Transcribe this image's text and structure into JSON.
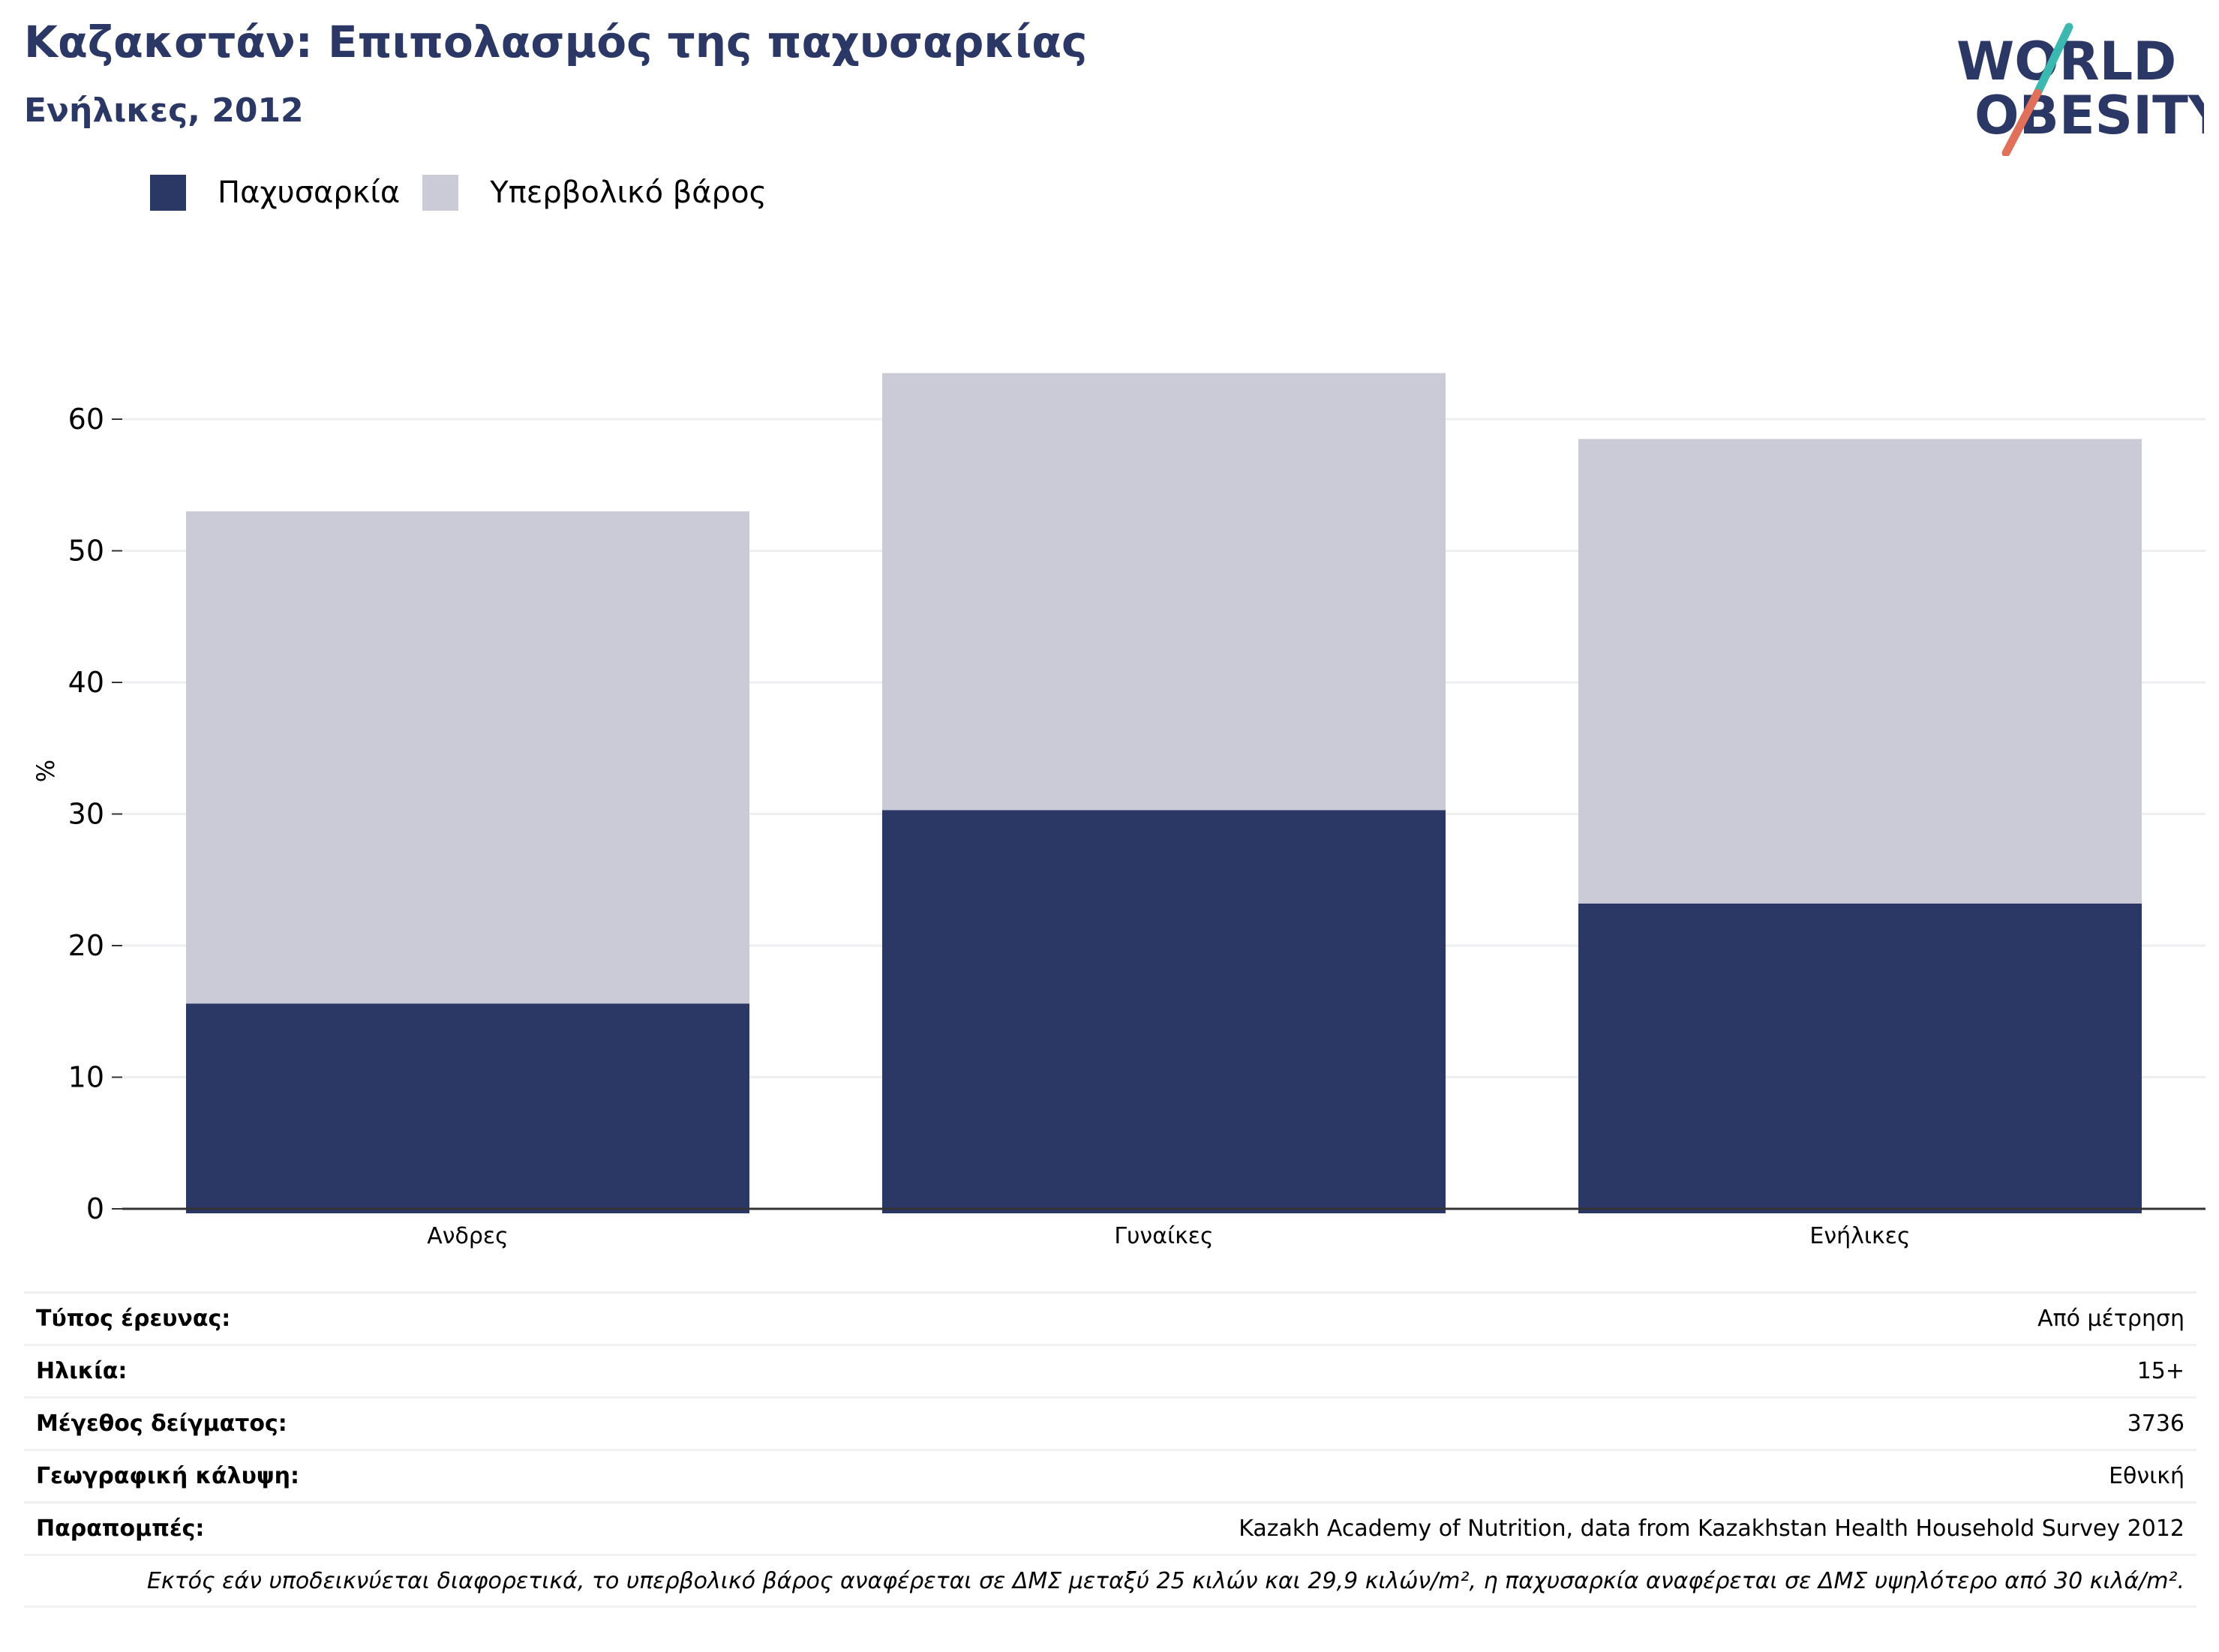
{
  "header": {
    "title": "Καζακστάν: Επιπολασμός της παχυσαρκίας",
    "subtitle": "Ενήλικες, 2012"
  },
  "logo": {
    "line1": "WORLD",
    "line2": "OBESITY",
    "colors": {
      "text": "#2b3765",
      "teal": "#3bb8b0",
      "coral": "#e0705a"
    }
  },
  "chart_data": {
    "type": "bar",
    "stacked": true,
    "categories": [
      "Ανδρες",
      "Γυναίκες",
      "Ενήλικες"
    ],
    "series": [
      {
        "name": "Παχυσαρκία",
        "values": [
          15.6,
          30.3,
          23.2
        ],
        "color": "#2b3765"
      },
      {
        "name": "Υπερβολικό βάρος",
        "values": [
          37.4,
          33.2,
          35.3
        ],
        "color": "#cacbd6"
      }
    ],
    "yticks": [
      "0",
      "10",
      "20",
      "30",
      "40",
      "50",
      "60"
    ],
    "ylim": [
      0,
      65
    ],
    "ylabel": "%",
    "grid": true,
    "legend": "top-left"
  },
  "info": {
    "rows": [
      {
        "key": "Τύπος έρευνας:",
        "value": "Από μέτρηση"
      },
      {
        "key": "Ηλικία:",
        "value": "15+"
      },
      {
        "key": "Μέγεθος δείγματος:",
        "value": "3736"
      },
      {
        "key": "Γεωγραφική κάλυψη:",
        "value": "Εθνική"
      },
      {
        "key": "Παραπομπές:",
        "value": "Kazakh Academy of Nutrition, data from Kazakhstan Health Household Survey 2012"
      }
    ],
    "note": "Εκτός εάν υποδεικνύεται διαφορετικά, το υπερβολικό βάρος αναφέρεται σε ΔΜΣ μεταξύ 25 κιλών και 29,9 κιλών/m², η παχυσαρκία αναφέρεται σε ΔΜΣ υψηλότερο από 30 κιλά/m²."
  }
}
